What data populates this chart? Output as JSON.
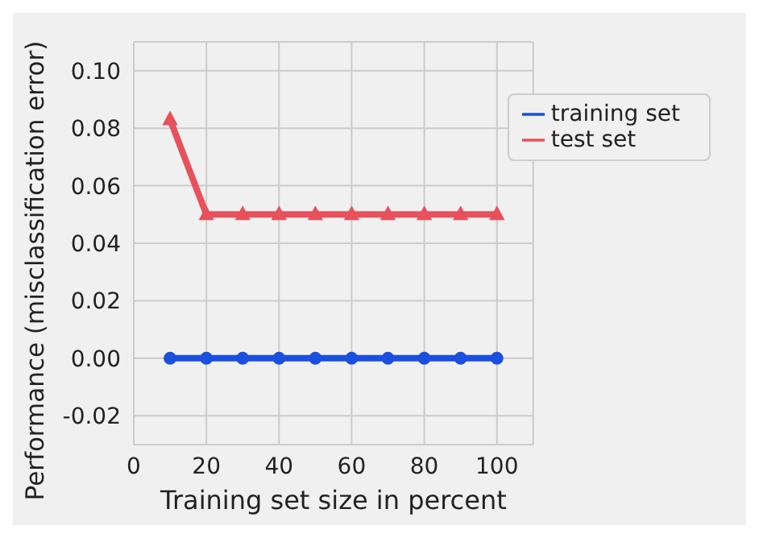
{
  "chart_data": {
    "type": "line",
    "xlabel": "Training set size in percent",
    "ylabel": "Performance (misclassification error)",
    "x": [
      10,
      20,
      30,
      40,
      50,
      60,
      70,
      80,
      90,
      100
    ],
    "series": [
      {
        "name": "training set",
        "color": "#1a4fe0",
        "marker": "circle",
        "values": [
          0,
          0,
          0,
          0,
          0,
          0,
          0,
          0,
          0,
          0
        ]
      },
      {
        "name": "test set",
        "color": "#e8505b",
        "marker": "triangle",
        "values": [
          0.083,
          0.05,
          0.05,
          0.05,
          0.05,
          0.05,
          0.05,
          0.05,
          0.05,
          0.05
        ]
      }
    ],
    "xlim": [
      0,
      110
    ],
    "xticks": [
      0,
      20,
      40,
      60,
      80,
      100
    ],
    "ylim": [
      -0.03,
      0.11
    ],
    "yticks": [
      {
        "value": -0.02,
        "label": "-0.02"
      },
      {
        "value": 0,
        "label": "0.00"
      },
      {
        "value": 0.02,
        "label": "0.02"
      },
      {
        "value": 0.04,
        "label": "0.04"
      },
      {
        "value": 0.06,
        "label": "0.06"
      },
      {
        "value": 0.08,
        "label": "0.08"
      },
      {
        "value": 0.1,
        "label": "0.10"
      }
    ],
    "grid": true,
    "legend": "top right"
  }
}
